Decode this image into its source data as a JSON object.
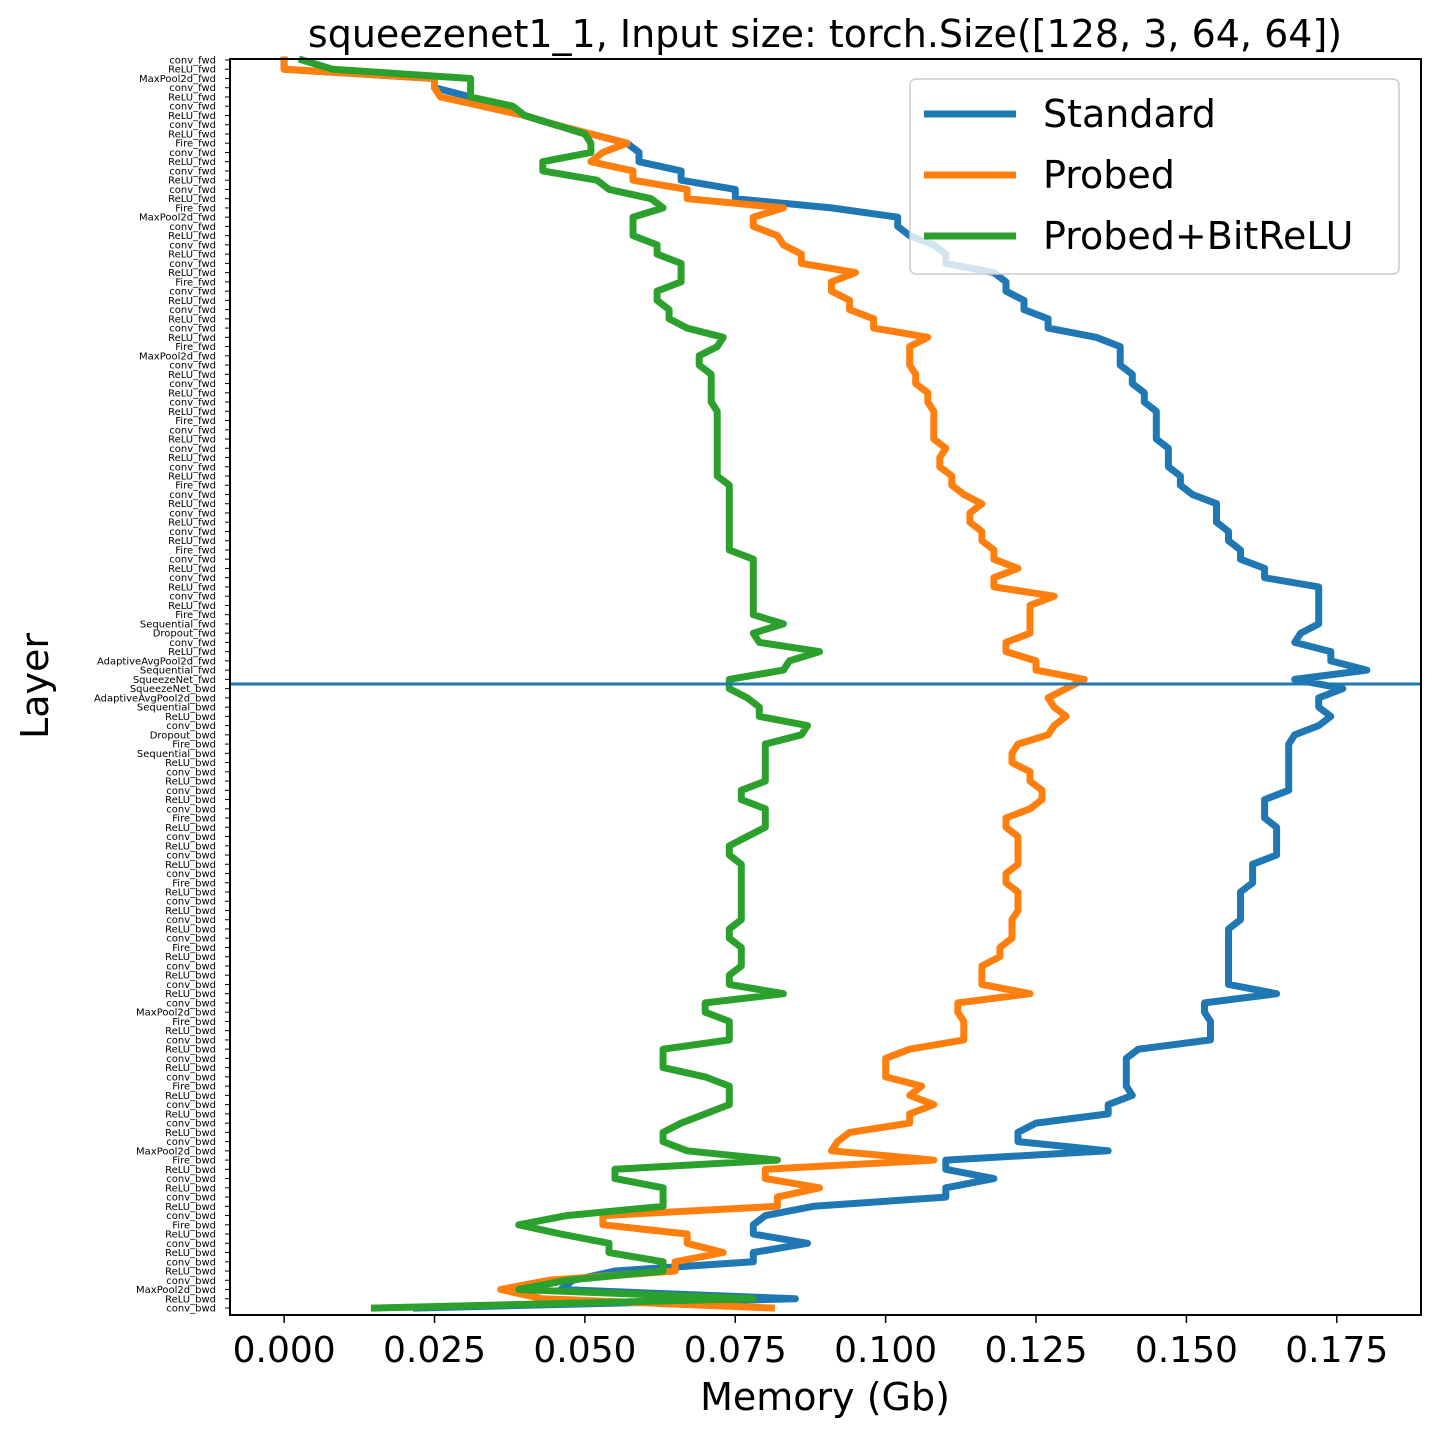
{
  "chart_data": {
    "type": "line",
    "title": "squeezenet1_1, Input size: torch.Size([128, 3, 64, 64])",
    "xlabel": "Memory (Gb)",
    "ylabel": "Layer",
    "xlim": [
      -0.009,
      0.189
    ],
    "x_ticks": [
      "0.000",
      "0.025",
      "0.050",
      "0.075",
      "0.100",
      "0.125",
      "0.150",
      "0.175"
    ],
    "x_tick_values": [
      0,
      0.025,
      0.05,
      0.075,
      0.1,
      0.125,
      0.15,
      0.175
    ],
    "orientation": "layers on vertical axis, top to bottom",
    "grid": false,
    "legend_position": "top-right",
    "fwd_bwd_boundary_index": 68,
    "categories": [
      "conv_fwd",
      "ReLU_fwd",
      "MaxPool2d_fwd",
      "conv_fwd",
      "ReLU_fwd",
      "conv_fwd",
      "ReLU_fwd",
      "conv_fwd",
      "ReLU_fwd",
      "Fire_fwd",
      "conv_fwd",
      "ReLU_fwd",
      "conv_fwd",
      "ReLU_fwd",
      "conv_fwd",
      "ReLU_fwd",
      "Fire_fwd",
      "MaxPool2d_fwd",
      "conv_fwd",
      "ReLU_fwd",
      "conv_fwd",
      "ReLU_fwd",
      "conv_fwd",
      "ReLU_fwd",
      "Fire_fwd",
      "conv_fwd",
      "ReLU_fwd",
      "conv_fwd",
      "ReLU_fwd",
      "conv_fwd",
      "ReLU_fwd",
      "Fire_fwd",
      "MaxPool2d_fwd",
      "conv_fwd",
      "ReLU_fwd",
      "conv_fwd",
      "ReLU_fwd",
      "conv_fwd",
      "ReLU_fwd",
      "Fire_fwd",
      "conv_fwd",
      "ReLU_fwd",
      "conv_fwd",
      "ReLU_fwd",
      "conv_fwd",
      "ReLU_fwd",
      "Fire_fwd",
      "conv_fwd",
      "ReLU_fwd",
      "conv_fwd",
      "ReLU_fwd",
      "conv_fwd",
      "ReLU_fwd",
      "Fire_fwd",
      "conv_fwd",
      "ReLU_fwd",
      "conv_fwd",
      "ReLU_fwd",
      "conv_fwd",
      "ReLU_fwd",
      "Fire_fwd",
      "Sequential_fwd",
      "Dropout_fwd",
      "conv_fwd",
      "ReLU_fwd",
      "AdaptiveAvgPool2d_fwd",
      "Sequential_fwd",
      "SqueezeNet_fwd",
      "SqueezeNet_bwd",
      "AdaptiveAvgPool2d_bwd",
      "Sequential_bwd",
      "ReLU_bwd",
      "conv_bwd",
      "Dropout_bwd",
      "Fire_bwd",
      "Sequential_bwd",
      "ReLU_bwd",
      "conv_bwd",
      "ReLU_bwd",
      "conv_bwd",
      "ReLU_bwd",
      "conv_bwd",
      "Fire_bwd",
      "ReLU_bwd",
      "conv_bwd",
      "ReLU_bwd",
      "conv_bwd",
      "ReLU_bwd",
      "conv_bwd",
      "Fire_bwd",
      "ReLU_bwd",
      "conv_bwd",
      "ReLU_bwd",
      "conv_bwd",
      "ReLU_bwd",
      "conv_bwd",
      "Fire_bwd",
      "ReLU_bwd",
      "conv_bwd",
      "ReLU_bwd",
      "conv_bwd",
      "ReLU_bwd",
      "conv_bwd",
      "MaxPool2d_bwd",
      "Fire_bwd",
      "ReLU_bwd",
      "conv_bwd",
      "ReLU_bwd",
      "conv_bwd",
      "ReLU_bwd",
      "conv_bwd",
      "Fire_bwd",
      "ReLU_bwd",
      "conv_bwd",
      "ReLU_bwd",
      "conv_bwd",
      "ReLU_bwd",
      "conv_bwd",
      "MaxPool2d_bwd",
      "Fire_bwd",
      "ReLU_bwd",
      "conv_bwd",
      "ReLU_bwd",
      "conv_bwd",
      "ReLU_bwd",
      "conv_bwd",
      "Fire_bwd",
      "ReLU_bwd",
      "conv_bwd",
      "ReLU_bwd",
      "conv_bwd",
      "ReLU_bwd",
      "conv_bwd",
      "MaxPool2d_bwd",
      "ReLU_bwd",
      "conv_bwd"
    ],
    "series": [
      {
        "name": "Standard",
        "color": "#1f77b4",
        "values": [
          0.0,
          0.0,
          0.025,
          0.025,
          0.031,
          0.033,
          0.04,
          0.045,
          0.051,
          0.057,
          0.059,
          0.059,
          0.066,
          0.066,
          0.075,
          0.075,
          0.091,
          0.102,
          0.102,
          0.104,
          0.108,
          0.11,
          0.11,
          0.118,
          0.12,
          0.12,
          0.123,
          0.123,
          0.127,
          0.127,
          0.135,
          0.139,
          0.139,
          0.139,
          0.141,
          0.141,
          0.143,
          0.143,
          0.145,
          0.145,
          0.145,
          0.145,
          0.147,
          0.147,
          0.147,
          0.149,
          0.149,
          0.151,
          0.155,
          0.155,
          0.155,
          0.157,
          0.157,
          0.159,
          0.159,
          0.163,
          0.163,
          0.172,
          0.172,
          0.172,
          0.172,
          0.172,
          0.169,
          0.168,
          0.174,
          0.174,
          0.18,
          0.168,
          0.176,
          0.172,
          0.172,
          0.174,
          0.172,
          0.168,
          0.167,
          0.167,
          0.167,
          0.167,
          0.167,
          0.167,
          0.163,
          0.163,
          0.163,
          0.165,
          0.165,
          0.165,
          0.165,
          0.161,
          0.161,
          0.161,
          0.159,
          0.159,
          0.159,
          0.159,
          0.157,
          0.157,
          0.157,
          0.157,
          0.157,
          0.157,
          0.157,
          0.165,
          0.153,
          0.153,
          0.154,
          0.154,
          0.154,
          0.142,
          0.14,
          0.14,
          0.14,
          0.14,
          0.141,
          0.137,
          0.137,
          0.125,
          0.122,
          0.122,
          0.137,
          0.11,
          0.11,
          0.118,
          0.11,
          0.11,
          0.088,
          0.08,
          0.078,
          0.078,
          0.087,
          0.078,
          0.078,
          0.055,
          0.048,
          0.046,
          0.085,
          0.022
        ]
      },
      {
        "name": "Probed",
        "color": "#ff7f0e",
        "values": [
          0.0,
          0.0,
          0.025,
          0.025,
          0.026,
          0.033,
          0.04,
          0.045,
          0.051,
          0.057,
          0.053,
          0.051,
          0.058,
          0.058,
          0.067,
          0.067,
          0.083,
          0.078,
          0.078,
          0.082,
          0.083,
          0.086,
          0.086,
          0.095,
          0.091,
          0.091,
          0.094,
          0.094,
          0.098,
          0.098,
          0.107,
          0.104,
          0.104,
          0.104,
          0.105,
          0.105,
          0.107,
          0.107,
          0.108,
          0.108,
          0.108,
          0.108,
          0.11,
          0.109,
          0.109,
          0.111,
          0.111,
          0.113,
          0.116,
          0.114,
          0.114,
          0.116,
          0.116,
          0.118,
          0.118,
          0.122,
          0.118,
          0.118,
          0.128,
          0.124,
          0.124,
          0.124,
          0.124,
          0.12,
          0.12,
          0.125,
          0.125,
          0.133,
          0.13,
          0.127,
          0.128,
          0.13,
          0.128,
          0.127,
          0.122,
          0.121,
          0.121,
          0.124,
          0.124,
          0.126,
          0.126,
          0.124,
          0.12,
          0.12,
          0.122,
          0.122,
          0.122,
          0.122,
          0.12,
          0.12,
          0.122,
          0.122,
          0.122,
          0.121,
          0.121,
          0.121,
          0.119,
          0.119,
          0.116,
          0.116,
          0.116,
          0.124,
          0.112,
          0.112,
          0.113,
          0.113,
          0.113,
          0.104,
          0.1,
          0.1,
          0.1,
          0.106,
          0.104,
          0.108,
          0.104,
          0.104,
          0.094,
          0.092,
          0.091,
          0.108,
          0.08,
          0.08,
          0.089,
          0.082,
          0.082,
          0.053,
          0.053,
          0.067,
          0.067,
          0.073,
          0.065,
          0.065,
          0.044,
          0.036,
          0.043,
          0.081
        ]
      },
      {
        "name": "Probed+BitReLU",
        "color": "#2ca02c",
        "values": [
          0.003,
          0.008,
          0.031,
          0.031,
          0.031,
          0.038,
          0.04,
          0.045,
          0.05,
          0.051,
          0.051,
          0.043,
          0.043,
          0.052,
          0.054,
          0.061,
          0.063,
          0.058,
          0.058,
          0.058,
          0.062,
          0.062,
          0.066,
          0.066,
          0.066,
          0.062,
          0.062,
          0.064,
          0.064,
          0.067,
          0.073,
          0.072,
          0.069,
          0.069,
          0.071,
          0.071,
          0.071,
          0.071,
          0.072,
          0.072,
          0.072,
          0.072,
          0.072,
          0.072,
          0.072,
          0.072,
          0.074,
          0.074,
          0.074,
          0.074,
          0.074,
          0.074,
          0.074,
          0.074,
          0.078,
          0.078,
          0.078,
          0.078,
          0.078,
          0.078,
          0.078,
          0.083,
          0.078,
          0.079,
          0.089,
          0.084,
          0.083,
          0.074,
          0.074,
          0.077,
          0.079,
          0.079,
          0.087,
          0.086,
          0.08,
          0.08,
          0.08,
          0.08,
          0.08,
          0.076,
          0.076,
          0.08,
          0.08,
          0.08,
          0.077,
          0.074,
          0.074,
          0.076,
          0.076,
          0.076,
          0.076,
          0.076,
          0.076,
          0.076,
          0.074,
          0.074,
          0.076,
          0.076,
          0.076,
          0.074,
          0.074,
          0.083,
          0.07,
          0.07,
          0.074,
          0.074,
          0.074,
          0.063,
          0.063,
          0.063,
          0.07,
          0.074,
          0.074,
          0.074,
          0.07,
          0.066,
          0.063,
          0.063,
          0.067,
          0.082,
          0.055,
          0.055,
          0.063,
          0.063,
          0.063,
          0.047,
          0.039,
          0.046,
          0.054,
          0.054,
          0.063,
          0.063,
          0.047,
          0.039,
          0.078,
          0.015
        ]
      }
    ]
  }
}
